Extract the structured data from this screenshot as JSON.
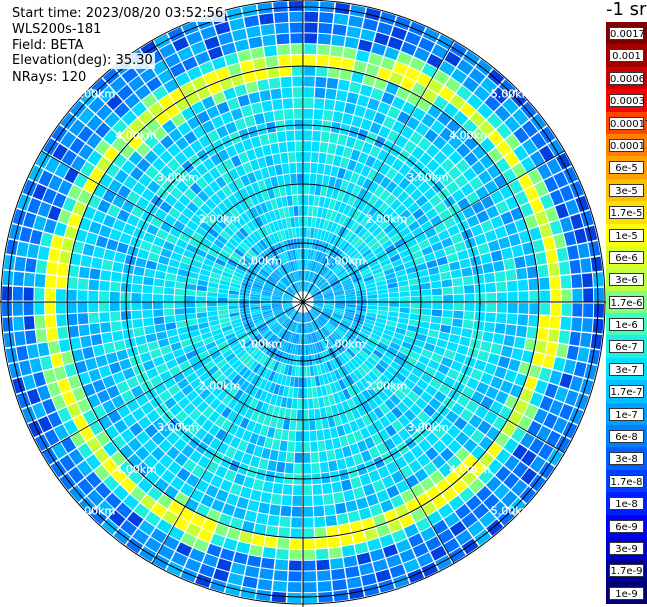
{
  "header": {
    "start_time": "Start time: 2023/08/20 03:52:56",
    "instrument": "WLS200s-181",
    "field": "Field: BETA",
    "elevation": "Elevation(deg): 35.30",
    "nrays": "NRays: 120"
  },
  "range_rings": [
    "1.00km",
    "2.00km",
    "3.00km",
    "4.00km",
    "5.00km"
  ],
  "colorbar": {
    "unit": "-1 sr",
    "labels": [
      "0.0017",
      "0.001",
      "0.0006",
      "0.0003",
      "0.00017",
      "0.0001",
      "6e-5",
      "3e-5",
      "1.7e-5",
      "1e-5",
      "6e-6",
      "3e-6",
      "1.7e-6",
      "1e-6",
      "6e-7",
      "3e-7",
      "1.7e-7",
      "1e-7",
      "6e-8",
      "3e-8",
      "1.7e-8",
      "1e-8",
      "6e-9",
      "3e-9",
      "1.7e-9",
      "1e-9"
    ],
    "colors": [
      "#800000",
      "#a30000",
      "#cc0000",
      "#ff0000",
      "#ff4500",
      "#ff7f00",
      "#ff9f00",
      "#ffbf00",
      "#ffdf00",
      "#ffff00",
      "#dfff20",
      "#bfff40",
      "#80ff80",
      "#40ffbf",
      "#20efdf",
      "#00dfff",
      "#00c0ff",
      "#00a0ff",
      "#0080ff",
      "#0060ff",
      "#0040ff",
      "#0020ff",
      "#0000ff",
      "#0000cc",
      "#000099",
      "#000070"
    ]
  }
}
